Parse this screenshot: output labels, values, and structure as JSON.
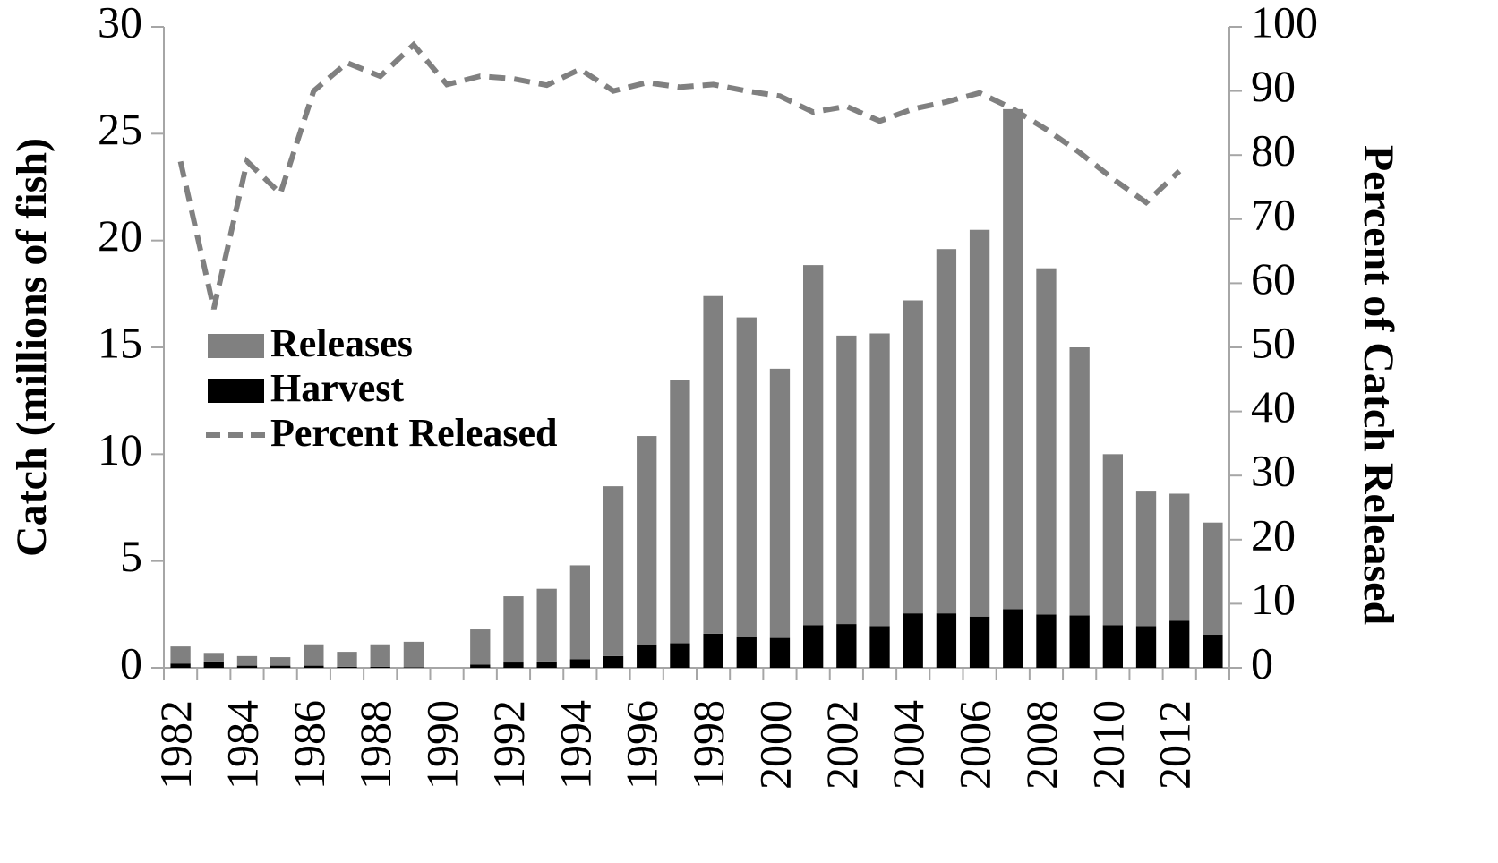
{
  "chart_data": {
    "type": "bar",
    "y_label": "Catch (millions of fish)",
    "y2_label": "Percent of Catch Released",
    "categories": [
      "1982",
      null,
      "1984",
      null,
      "1986",
      null,
      "1988",
      null,
      "1990",
      null,
      "1992",
      null,
      "1994",
      null,
      "1996",
      null,
      "1998",
      null,
      "2000",
      null,
      "2002",
      null,
      "2004",
      null,
      "2006",
      null,
      "2008",
      null,
      "2010",
      null,
      "2012",
      null
    ],
    "stacked": true,
    "series": [
      {
        "name": "Releases",
        "type": "bar",
        "color": "#808080",
        "values": [
          0.8,
          0.4,
          0.45,
          0.4,
          1.0,
          0.7,
          1.05,
          1.2,
          0,
          1.65,
          3.1,
          3.4,
          4.4,
          7.95,
          9.75,
          12.3,
          15.8,
          14.95,
          12.6,
          16.85,
          13.5,
          13.7,
          14.65,
          17.05,
          18.1,
          23.4,
          16.2,
          12.55,
          8.0,
          6.3,
          5.95,
          5.25
        ]
      },
      {
        "name": "Harvest",
        "type": "bar",
        "color": "#000000",
        "values": [
          0.2,
          0.3,
          0.1,
          0.1,
          0.1,
          0.05,
          0.05,
          0.02,
          0,
          0.15,
          0.25,
          0.3,
          0.4,
          0.55,
          1.1,
          1.15,
          1.6,
          1.45,
          1.4,
          2.0,
          2.05,
          1.95,
          2.55,
          2.55,
          2.4,
          2.75,
          2.5,
          2.45,
          2.0,
          1.95,
          2.2,
          1.55
        ]
      },
      {
        "name": "Percent Released",
        "type": "line",
        "axis": "y2",
        "color": "#808080",
        "dashed": true,
        "values": [
          79,
          56,
          79,
          74,
          90,
          94.4,
          92.3,
          97.2,
          91,
          92.3,
          91.9,
          90.9,
          93.4,
          90,
          91.3,
          90.6,
          91,
          90,
          89.2,
          86.7,
          87.6,
          85.3,
          87.2,
          88.3,
          89.7,
          87.2,
          84,
          80.4,
          76.3,
          72.6,
          77.5,
          null
        ]
      }
    ],
    "ylim": [
      0,
      30
    ],
    "yticks": [
      0,
      5,
      10,
      15,
      20,
      25,
      30
    ],
    "y2lim": [
      0,
      100
    ],
    "y2ticks": [
      0,
      10,
      20,
      30,
      40,
      50,
      60,
      70,
      80,
      90,
      100
    ],
    "grid": false
  }
}
